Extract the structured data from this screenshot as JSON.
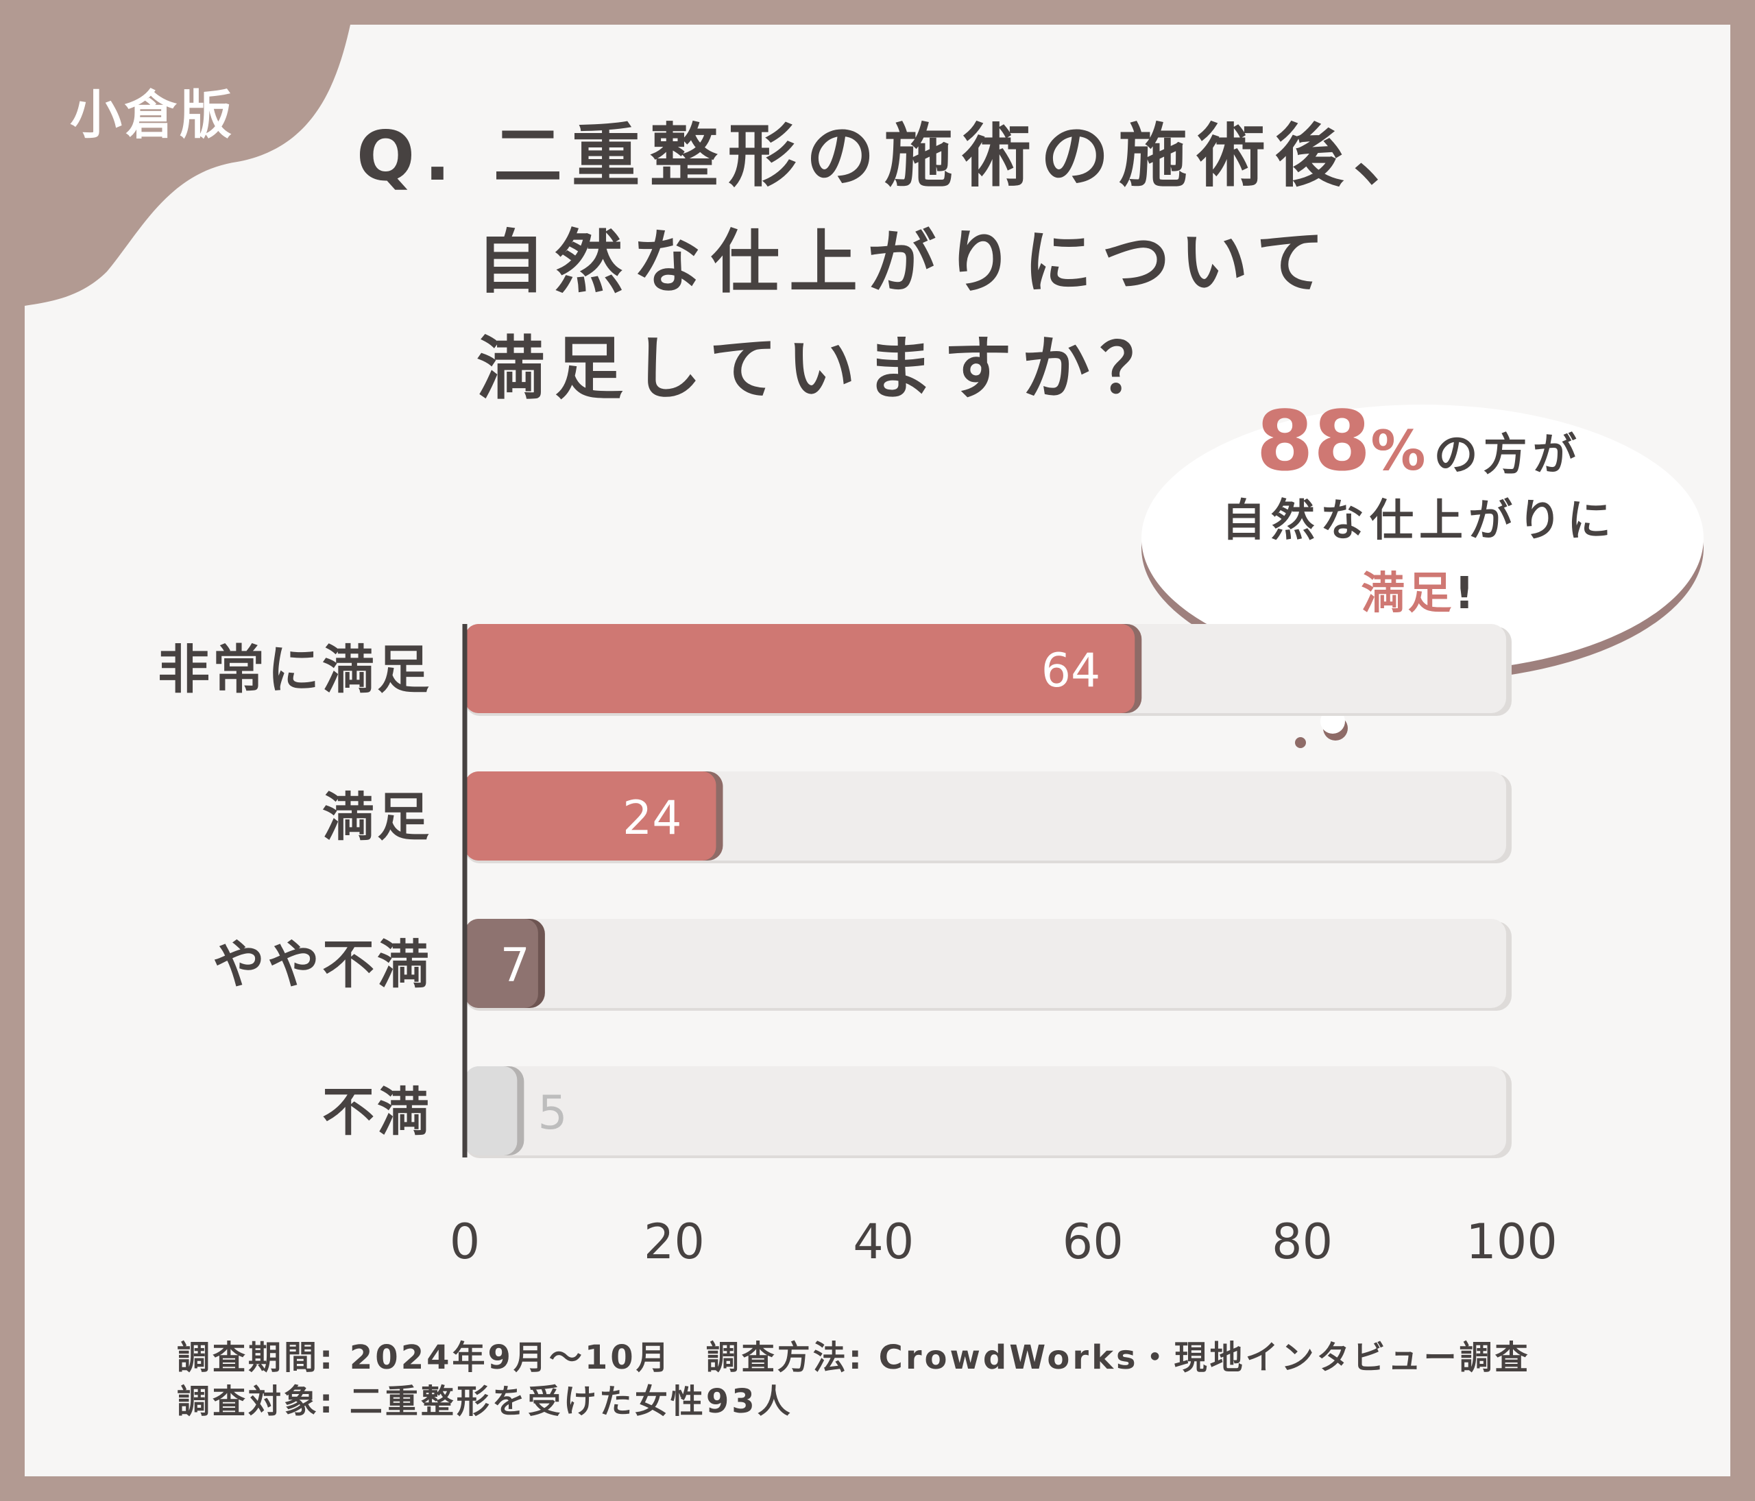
{
  "region_badge": "小倉版",
  "title_lines": [
    "Q. 二重整形の施術の施術後、",
    "自然な仕上がりについて",
    "満足していますか？"
  ],
  "callout": {
    "percent": "88",
    "percent_sign": "%",
    "line1_suffix": "の方が",
    "line2": "自然な仕上がりに",
    "line3_accent": "満足",
    "line3_suffix": "!"
  },
  "footer": {
    "period": "調査期間: 2024年9月～10月",
    "method": "調査方法: CrowdWorks・現地インタビュー調査",
    "target": "調査対象: 二重整形を受けた女性93人"
  },
  "colors": {
    "frame": "#b29a92",
    "accent_bar": "#cf7873",
    "accent_bar_shadow": "#8e6b67",
    "dark_bar": "#8e7370",
    "light_bar": "#dcdcdc",
    "track": "#efedec",
    "text": "#474241"
  },
  "chart_data": {
    "type": "bar",
    "orientation": "horizontal",
    "categories": [
      "非常に満足",
      "満足",
      "やや不満",
      "不満"
    ],
    "values": [
      64,
      24,
      7,
      5
    ],
    "value_labels": [
      "64",
      "24",
      "7",
      "5"
    ],
    "bar_colors": [
      "#cf7873",
      "#cf7873",
      "#8e7370",
      "#dcdcdc"
    ],
    "xlim": [
      0,
      100
    ],
    "xticks": [
      "0",
      "20",
      "40",
      "60",
      "80",
      "100"
    ],
    "grid": false,
    "legend": "none"
  }
}
